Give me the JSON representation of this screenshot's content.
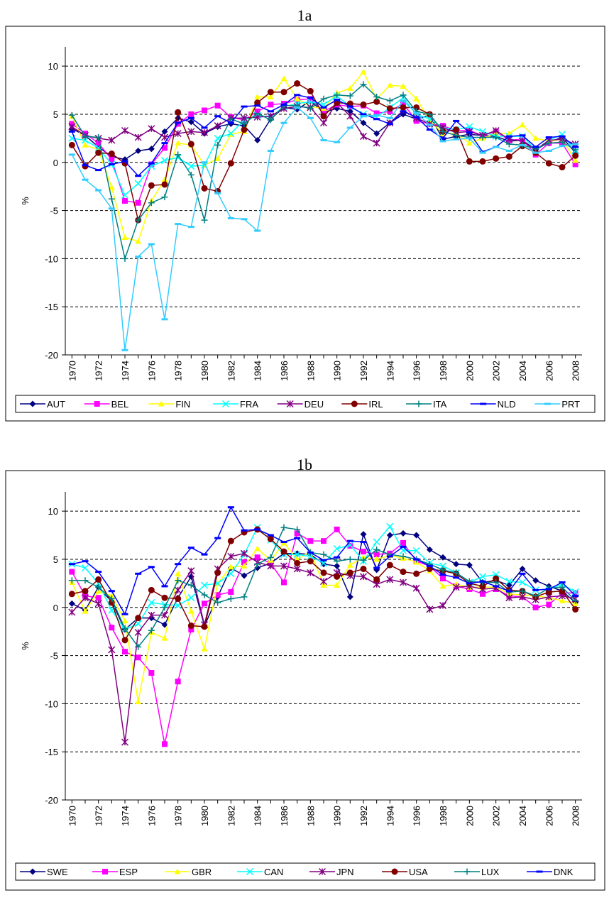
{
  "chart_data": [
    {
      "type": "line",
      "title": "1a",
      "y_label": "%",
      "x": [
        1970,
        1971,
        1972,
        1973,
        1974,
        1975,
        1976,
        1977,
        1978,
        1979,
        1980,
        1981,
        1982,
        1983,
        1984,
        1985,
        1986,
        1987,
        1988,
        1989,
        1990,
        1991,
        1992,
        1993,
        1994,
        1995,
        1996,
        1997,
        1998,
        1999,
        2000,
        2001,
        2002,
        2003,
        2004,
        2005,
        2006,
        2007,
        2008
      ],
      "xlim": [
        1969.5,
        2008.5
      ],
      "xticks": [
        1970,
        1972,
        1974,
        1976,
        1978,
        1980,
        1982,
        1984,
        1986,
        1988,
        1990,
        1992,
        1994,
        1996,
        1998,
        2000,
        2002,
        2004,
        2006,
        2008
      ],
      "ylim": [
        -20,
        12
      ],
      "yticks": [
        -20,
        -15,
        -10,
        -5,
        0,
        5,
        10
      ],
      "grid": true,
      "legend": "bottom",
      "series": [
        {
          "name": "AUT",
          "color": "#000080",
          "marker": "diamond",
          "values": [
            3.5,
            2.8,
            1.6,
            0.6,
            0.3,
            1.2,
            1.4,
            3.2,
            4.6,
            4.2,
            3.0,
            3.7,
            4.0,
            3.8,
            2.3,
            4.5,
            5.7,
            5.5,
            6.4,
            5.2,
            5.6,
            5.3,
            4.1,
            3.0,
            4.1,
            5.0,
            4.5,
            4.9,
            2.4,
            2.7,
            2.9,
            2.8,
            2.7,
            2.2,
            2.3,
            1.3,
            2.1,
            2.6,
            1.0
          ]
        },
        {
          "name": "BEL",
          "color": "#ff00ff",
          "marker": "square",
          "values": [
            4.0,
            3.0,
            2.0,
            0.3,
            -4.0,
            -4.2,
            -0.2,
            1.5,
            4.0,
            5.0,
            5.4,
            5.9,
            4.7,
            4.4,
            5.3,
            6.0,
            6.1,
            6.5,
            6.6,
            5.3,
            6.0,
            5.8,
            5.9,
            5.1,
            5.3,
            6.1,
            4.3,
            4.0,
            3.8,
            3.3,
            3.3,
            2.8,
            3.2,
            2.3,
            2.4,
            0.8,
            2.0,
            2.0,
            -0.2
          ]
        },
        {
          "name": "FIN",
          "color": "#ffff00",
          "marker": "triangle",
          "values": [
            4.8,
            1.8,
            1.3,
            -2.6,
            -7.8,
            -8.2,
            -4.0,
            -1.8,
            2.0,
            1.8,
            -0.3,
            0.4,
            2.9,
            3.2,
            6.8,
            6.8,
            8.7,
            6.6,
            5.8,
            5.6,
            7.2,
            7.7,
            9.4,
            6.6,
            8.0,
            7.9,
            6.6,
            4.4,
            3.0,
            3.0,
            2.0,
            2.5,
            3.0,
            3.0,
            3.9,
            2.5,
            2.2,
            2.4,
            0.2
          ]
        },
        {
          "name": "FRA",
          "color": "#00ffff",
          "marker": "x",
          "values": [
            2.5,
            2.3,
            1.5,
            -0.2,
            -3.4,
            -2.2,
            -0.4,
            0.2,
            0.5,
            -0.4,
            -0.3,
            2.5,
            3.0,
            4.4,
            4.9,
            4.7,
            5.8,
            6.1,
            6.3,
            6.0,
            6.9,
            5.8,
            5.0,
            4.7,
            5.7,
            6.7,
            5.0,
            4.5,
            3.6,
            3.4,
            3.7,
            3.2,
            2.7,
            2.7,
            2.7,
            1.3,
            2.3,
            2.9,
            1.2
          ]
        },
        {
          "name": "DEU",
          "color": "#800080",
          "marker": "asterisk",
          "values": [
            3.7,
            2.8,
            2.5,
            2.3,
            3.3,
            2.6,
            3.5,
            2.6,
            3.0,
            3.2,
            3.1,
            3.8,
            4.6,
            4.6,
            4.7,
            4.8,
            5.6,
            5.8,
            5.7,
            4.1,
            6.2,
            4.8,
            2.7,
            2.0,
            4.1,
            5.4,
            4.6,
            4.0,
            3.6,
            3.1,
            3.2,
            2.8,
            3.3,
            2.4,
            2.2,
            1.3,
            2.3,
            2.4,
            1.9
          ]
        },
        {
          "name": "IRL",
          "color": "#800000",
          "marker": "circle",
          "values": [
            1.8,
            -0.4,
            1.0,
            0.9,
            -0.1,
            -6.0,
            -2.4,
            -2.3,
            5.2,
            1.9,
            -2.7,
            -3.0,
            -0.1,
            3.4,
            6.2,
            7.3,
            7.3,
            8.2,
            7.4,
            4.8,
            6.2,
            6.1,
            6.0,
            6.3,
            5.6,
            5.7,
            5.7,
            5.0,
            3.2,
            3.4,
            0.1,
            0.1,
            0.4,
            0.6,
            1.7,
            1.0,
            -0.1,
            -0.5,
            0.7
          ]
        },
        {
          "name": "ITA",
          "color": "#008080",
          "marker": "plus",
          "values": [
            4.9,
            2.7,
            2.6,
            -3.8,
            -10.0,
            -6.0,
            -4.2,
            -3.6,
            0.8,
            -1.3,
            -6.0,
            1.8,
            4.5,
            4.0,
            5.1,
            4.4,
            5.9,
            5.9,
            5.6,
            6.6,
            7.0,
            6.9,
            8.1,
            6.8,
            6.4,
            7.0,
            5.3,
            5.0,
            3.2,
            2.8,
            2.6,
            2.6,
            2.6,
            1.9,
            1.8,
            1.4,
            2.0,
            2.1,
            1.3
          ]
        },
        {
          "name": "NLD",
          "color": "#0000ff",
          "marker": "dash",
          "values": [
            3.2,
            -0.3,
            -0.8,
            -0.2,
            0.1,
            -1.4,
            -0.1,
            2.0,
            4.1,
            4.6,
            3.6,
            4.8,
            4.1,
            5.8,
            5.9,
            5.3,
            6.0,
            7.0,
            6.7,
            5.7,
            6.5,
            5.8,
            5.0,
            4.5,
            4.0,
            5.3,
            4.7,
            3.4,
            2.5,
            4.3,
            3.1,
            1.1,
            1.6,
            2.7,
            2.8,
            1.6,
            2.6,
            2.7,
            1.6
          ]
        },
        {
          "name": "PRT",
          "color": "#33ccff",
          "marker": "dash",
          "values": [
            0.8,
            -1.8,
            -2.9,
            -4.8,
            -19.5,
            -9.8,
            -8.5,
            -16.3,
            -6.4,
            -6.7,
            0.0,
            -3.2,
            -5.8,
            -5.9,
            -7.1,
            1.2,
            4.1,
            5.7,
            4.6,
            2.3,
            2.1,
            3.6,
            4.8,
            4.9,
            4.6,
            6.4,
            5.1,
            3.9,
            2.2,
            2.4,
            2.5,
            1.0,
            1.6,
            1.2,
            1.8,
            1.0,
            1.2,
            1.7,
            1.9
          ]
        }
      ]
    },
    {
      "type": "line",
      "title": "1b",
      "y_label": "%",
      "x": [
        1970,
        1971,
        1972,
        1973,
        1974,
        1975,
        1976,
        1977,
        1978,
        1979,
        1980,
        1981,
        1982,
        1983,
        1984,
        1985,
        1986,
        1987,
        1988,
        1989,
        1990,
        1991,
        1992,
        1993,
        1994,
        1995,
        1996,
        1997,
        1998,
        1999,
        2000,
        2001,
        2002,
        2003,
        2004,
        2005,
        2006,
        2007,
        2008
      ],
      "xlim": [
        1969.5,
        2008.5
      ],
      "xticks": [
        1970,
        1972,
        1974,
        1976,
        1978,
        1980,
        1982,
        1984,
        1986,
        1988,
        1990,
        1992,
        1994,
        1996,
        1998,
        2000,
        2002,
        2004,
        2006,
        2008
      ],
      "ylim": [
        -20,
        12
      ],
      "yticks": [
        -20,
        -15,
        -10,
        -5,
        0,
        5,
        10
      ],
      "grid": true,
      "legend": "bottom",
      "series": [
        {
          "name": "SWE",
          "color": "#000080",
          "marker": "diamond",
          "values": [
            0.4,
            -0.3,
            2.1,
            0.6,
            -2.3,
            -1.1,
            -1.1,
            -1.8,
            1.0,
            3.2,
            -1.9,
            1.1,
            4.1,
            3.3,
            4.1,
            4.6,
            5.6,
            5.6,
            5.5,
            4.5,
            4.3,
            1.1,
            7.6,
            3.9,
            7.5,
            7.7,
            7.5,
            6.0,
            5.2,
            4.5,
            4.4,
            2.6,
            2.8,
            2.3,
            4.0,
            2.8,
            2.2,
            1.7,
            0.5
          ]
        },
        {
          "name": "ESP",
          "color": "#ff00ff",
          "marker": "square",
          "values": [
            3.7,
            1.2,
            1.0,
            -2.1,
            -4.6,
            -5.2,
            -6.8,
            -14.2,
            -7.7,
            -2.3,
            0.4,
            1.3,
            1.6,
            4.7,
            5.2,
            4.6,
            2.6,
            7.7,
            6.9,
            6.9,
            8.1,
            6.4,
            5.8,
            5.5,
            5.6,
            6.7,
            4.8,
            4.3,
            3.0,
            2.2,
            1.9,
            1.4,
            1.9,
            1.2,
            1.1,
            0.0,
            0.3,
            1.5,
            1.5
          ]
        },
        {
          "name": "GBR",
          "color": "#ffff00",
          "marker": "triangle",
          "values": [
            2.6,
            -0.4,
            1.7,
            1.2,
            -1.4,
            -9.8,
            -2.6,
            -3.2,
            3.5,
            -0.4,
            -4.3,
            2.5,
            4.2,
            4.3,
            6.1,
            4.9,
            6.7,
            5.0,
            5.8,
            2.3,
            2.3,
            4.4,
            5.2,
            5.0,
            5.4,
            5.1,
            4.7,
            3.8,
            2.2,
            2.4,
            2.1,
            2.1,
            2.1,
            1.4,
            1.3,
            1.2,
            1.0,
            0.7,
            0.4
          ]
        },
        {
          "name": "CAN",
          "color": "#00ffff",
          "marker": "x",
          "values": [
            4.5,
            4.1,
            2.5,
            -0.3,
            -2.3,
            -1.7,
            0.5,
            0.3,
            0.2,
            1.0,
            2.3,
            2.5,
            3.5,
            5.5,
            8.3,
            7.0,
            5.5,
            5.5,
            5.3,
            4.6,
            6.1,
            6.5,
            4.8,
            6.8,
            8.4,
            5.9,
            5.9,
            4.6,
            4.3,
            3.6,
            2.6,
            3.2,
            3.4,
            2.7,
            2.6,
            1.8,
            1.9,
            2.4,
            1.6
          ]
        },
        {
          "name": "JPN",
          "color": "#800080",
          "marker": "asterisk",
          "values": [
            -0.5,
            1.0,
            0.4,
            -4.4,
            -14.0,
            -2.6,
            -0.8,
            -0.8,
            1.8,
            3.8,
            -1.8,
            4.0,
            5.3,
            5.6,
            4.7,
            4.3,
            4.3,
            4.0,
            3.6,
            2.7,
            3.6,
            3.3,
            3.2,
            2.4,
            2.9,
            2.6,
            2.0,
            -0.2,
            0.2,
            2.1,
            2.2,
            1.9,
            2.0,
            1.0,
            1.1,
            0.8,
            1.1,
            1.2,
            0.9
          ]
        },
        {
          "name": "USA",
          "color": "#800000",
          "marker": "circle",
          "values": [
            1.4,
            1.7,
            2.9,
            0.5,
            -3.4,
            -1.1,
            1.8,
            1.0,
            0.9,
            -1.9,
            -2.0,
            3.6,
            6.9,
            7.8,
            8.1,
            7.1,
            5.8,
            4.6,
            4.8,
            3.6,
            3.2,
            3.6,
            4.0,
            2.9,
            4.4,
            3.7,
            3.5,
            4.0,
            3.8,
            3.5,
            2.5,
            2.2,
            3.0,
            1.8,
            1.7,
            1.1,
            1.6,
            1.7,
            -0.2
          ]
        },
        {
          "name": "LUX",
          "color": "#008080",
          "marker": "plus",
          "values": [
            2.8,
            2.8,
            2.1,
            0.9,
            -2.2,
            -4.1,
            -2.4,
            0.0,
            2.8,
            2.3,
            1.3,
            0.5,
            0.9,
            1.1,
            4.5,
            5.2,
            8.3,
            8.1,
            5.7,
            5.5,
            4.8,
            5.0,
            4.9,
            6.0,
            5.5,
            5.3,
            5.0,
            4.5,
            3.9,
            3.6,
            2.7,
            2.6,
            2.6,
            1.6,
            1.7,
            1.2,
            2.0,
            2.1,
            0.7
          ]
        },
        {
          "name": "DNK",
          "color": "#0000ff",
          "marker": "dash",
          "values": [
            4.5,
            4.8,
            3.7,
            1.7,
            -0.7,
            3.5,
            4.2,
            2.2,
            4.5,
            6.2,
            5.5,
            7.2,
            10.4,
            8.0,
            8.1,
            7.5,
            6.8,
            7.2,
            5.7,
            4.9,
            5.2,
            6.9,
            6.8,
            4.1,
            5.3,
            6.3,
            5.0,
            4.3,
            3.4,
            3.1,
            2.5,
            2.7,
            2.2,
            1.7,
            3.5,
            1.8,
            1.9,
            2.6,
            1.2
          ]
        }
      ]
    }
  ]
}
